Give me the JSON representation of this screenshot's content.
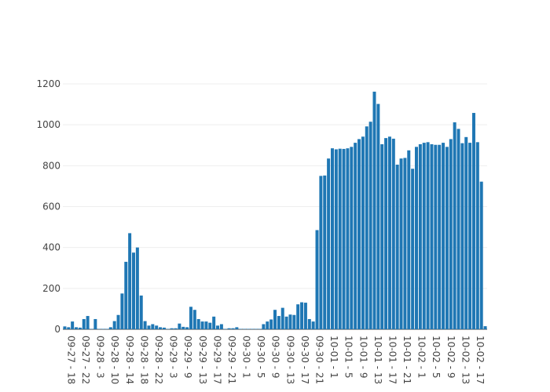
{
  "chart_data": {
    "type": "bar",
    "title": "",
    "xlabel": "",
    "ylabel": "",
    "ylim": [
      0,
      1200
    ],
    "yticks": [
      0,
      200,
      400,
      600,
      800,
      1000,
      1200
    ],
    "grid": true,
    "bar_color": "#1f77b4",
    "xtick_labels": [
      "09-27 - 18",
      "09-27 - 22",
      "09-28 - 3",
      "09-28 - 10",
      "09-28 - 14",
      "09-28 - 18",
      "09-28 - 22",
      "09-29 - 3",
      "09-29 - 9",
      "09-29 - 13",
      "09-29 - 17",
      "09-29 - 21",
      "09-30 - 1",
      "09-30 - 5",
      "09-30 - 9",
      "09-30 - 13",
      "09-30 - 17",
      "09-30 - 21",
      "10-01 - 1",
      "10-01 - 5",
      "10-01 - 9",
      "10-01 - 13",
      "10-01 - 17",
      "10-01 - 21",
      "10-02 - 1",
      "10-02 - 5",
      "10-02 - 9",
      "10-02 - 13",
      "10-02 - 17"
    ],
    "values": [
      14,
      10,
      38,
      10,
      8,
      50,
      65,
      2,
      50,
      2,
      2,
      2,
      10,
      40,
      70,
      175,
      330,
      470,
      375,
      400,
      165,
      40,
      18,
      25,
      18,
      10,
      8,
      2,
      5,
      5,
      28,
      12,
      10,
      110,
      95,
      50,
      38,
      38,
      32,
      62,
      18,
      25,
      2,
      5,
      5,
      10,
      2,
      2,
      2,
      2,
      2,
      2,
      25,
      38,
      48,
      95,
      65,
      105,
      62,
      72,
      70,
      122,
      132,
      130,
      50,
      38,
      485,
      750,
      752,
      835,
      885,
      880,
      883,
      882,
      885,
      892,
      912,
      930,
      942,
      992,
      1015,
      1162,
      1102,
      905,
      935,
      942,
      932,
      805,
      835,
      838,
      875,
      785,
      892,
      905,
      912,
      915,
      905,
      902,
      902,
      912,
      892,
      930,
      1012,
      980,
      910,
      940,
      912,
      1058,
      915,
      722,
      15
    ]
  }
}
